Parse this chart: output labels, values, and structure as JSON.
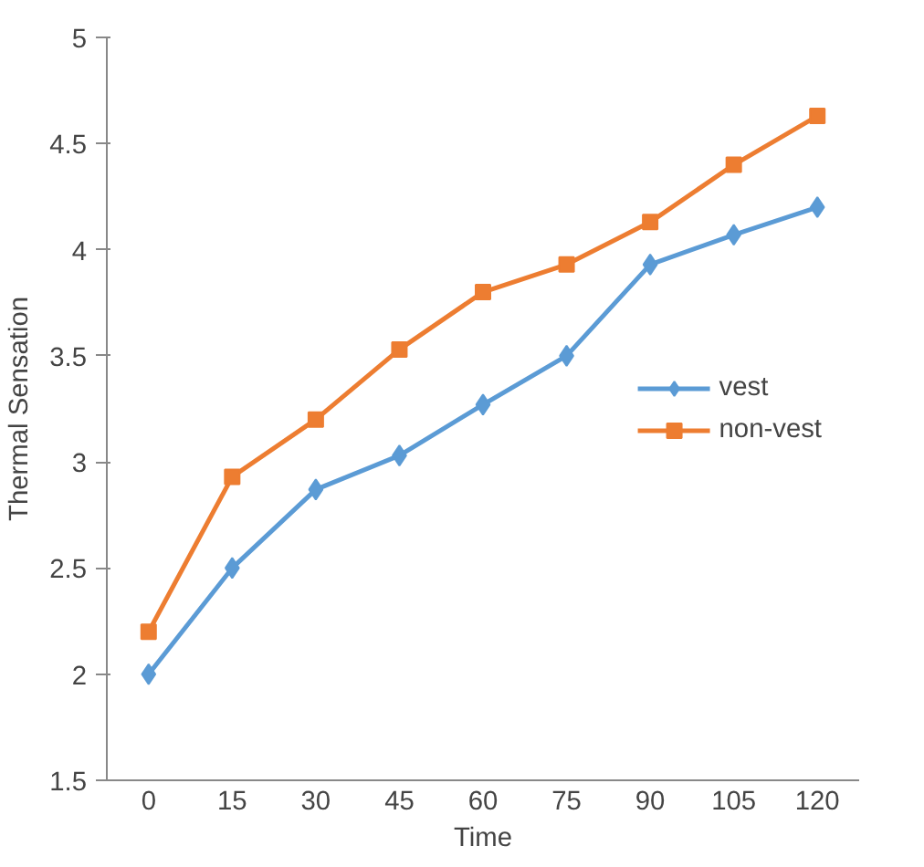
{
  "chart_data": {
    "type": "line",
    "xlabel": "Time",
    "ylabel": "Thermal Sensation",
    "categories": [
      "0",
      "15",
      "30",
      "45",
      "60",
      "75",
      "90",
      "105",
      "120"
    ],
    "series": [
      {
        "name": "vest",
        "color": "#5b9bd5",
        "marker": "diamond",
        "values": [
          2.0,
          2.5,
          2.87,
          3.03,
          3.27,
          3.5,
          3.93,
          4.07,
          4.2
        ]
      },
      {
        "name": "non-vest",
        "color": "#ed7d31",
        "marker": "square",
        "values": [
          2.2,
          2.93,
          3.2,
          3.53,
          3.8,
          3.93,
          4.13,
          4.4,
          4.63
        ]
      }
    ],
    "ylim": [
      1.5,
      5
    ],
    "yticks": [
      1.5,
      2,
      2.5,
      3,
      3.5,
      4,
      4.5,
      5
    ],
    "grid": false,
    "legend": "right",
    "line_style": "solid"
  }
}
